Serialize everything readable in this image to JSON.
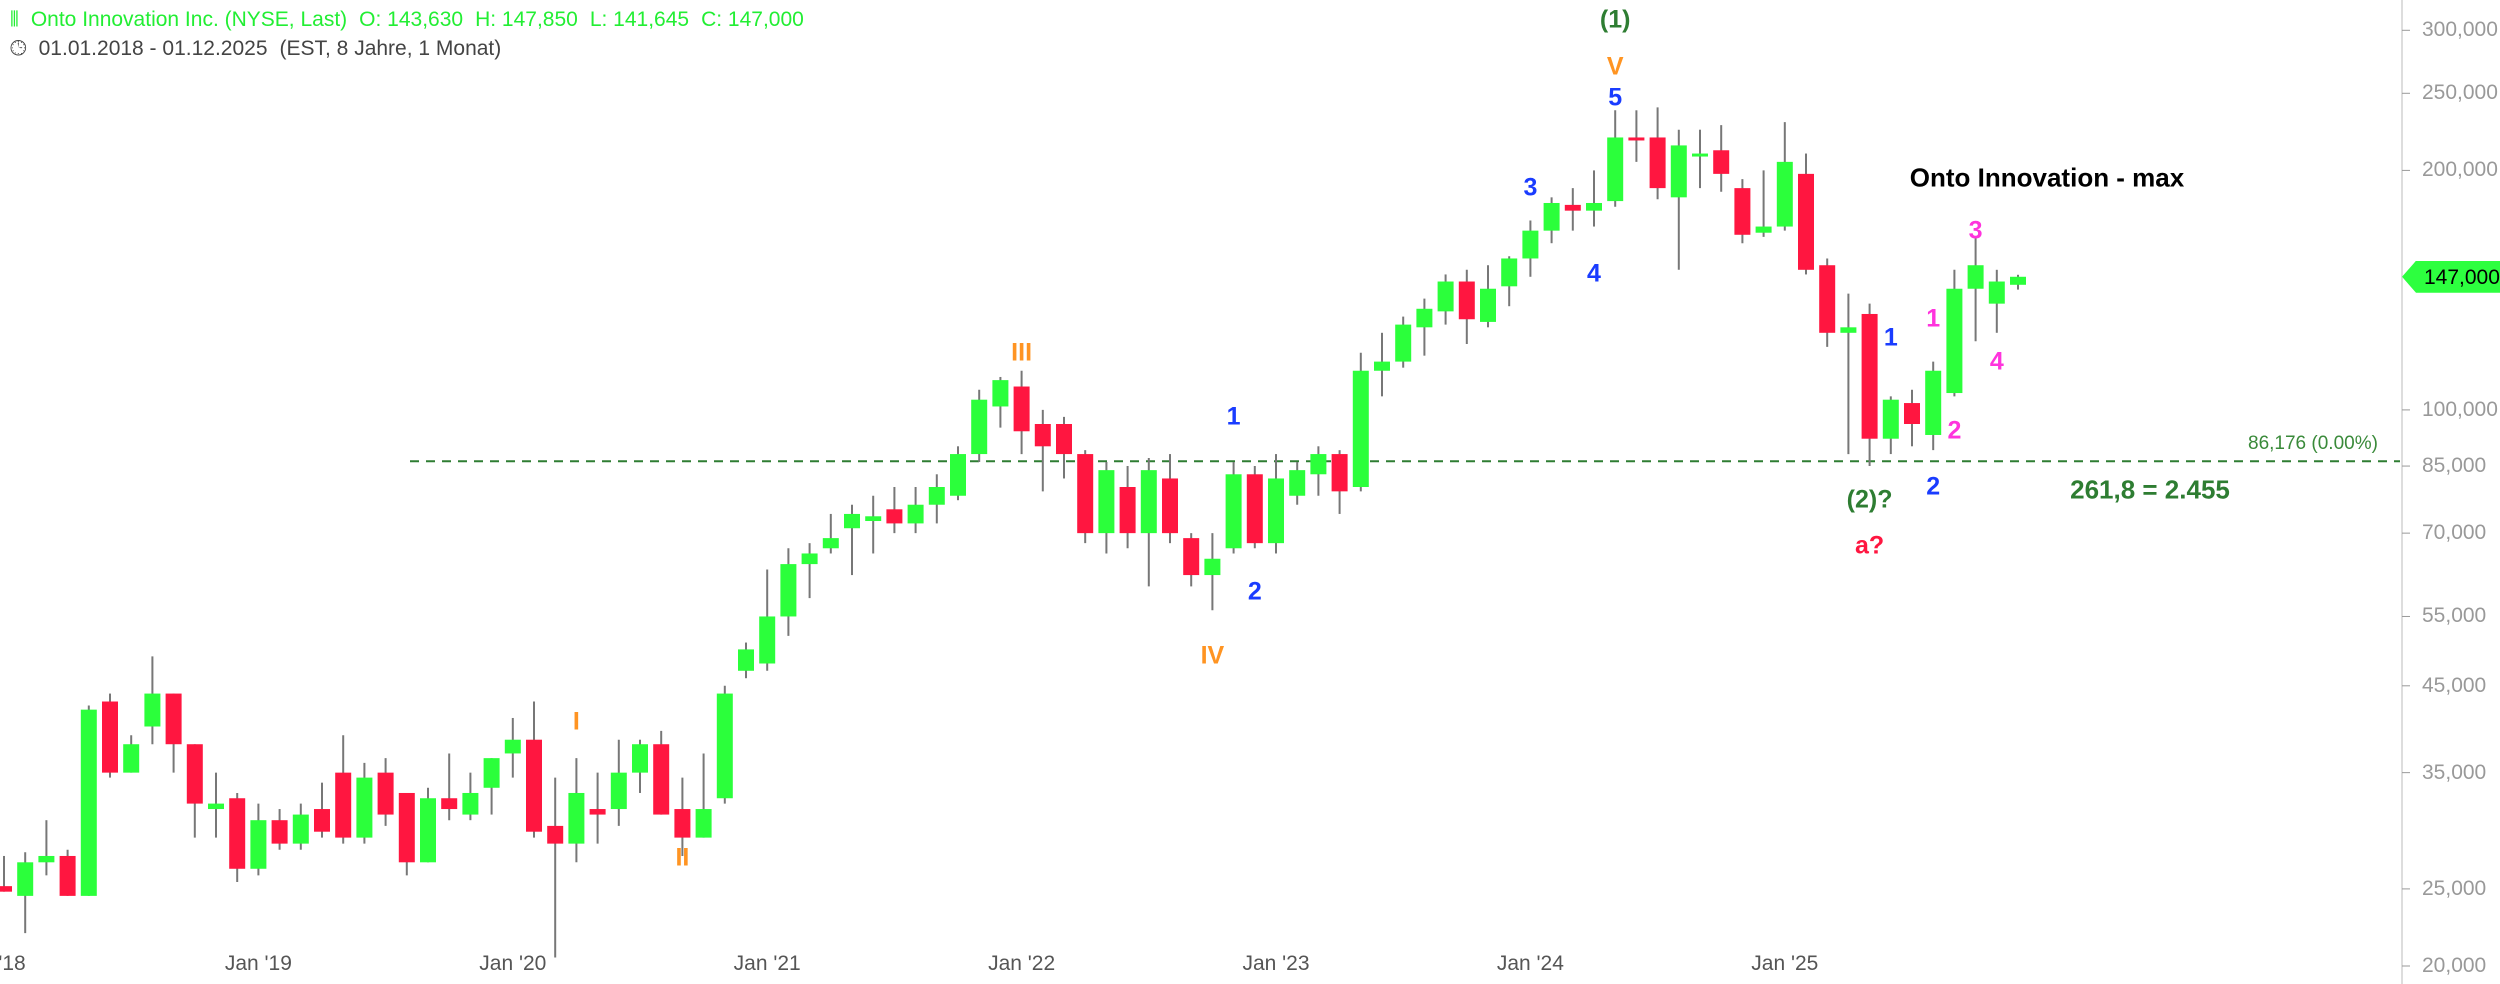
{
  "header": {
    "icon": "candlestick-icon",
    "instrument": "Onto Innovation Inc. (NYSE, Last)",
    "open": "O: 143,630",
    "high": "H: 147,850",
    "low": "L: 141,645",
    "close": "C: 147,000",
    "clock_icon": "clock-icon",
    "range": "01.01.2018 - 01.12.2025",
    "range_info": "(EST, 8 Jahre, 1 Monat)"
  },
  "colors": {
    "up": "#2bff3b",
    "down": "#ff1640",
    "wick": "#777777",
    "fib": "#2e7d32",
    "wave_major": "#ff9422",
    "wave_minor": "#1a3cff",
    "wave_sub": "#ff33dd",
    "wave_cycle": "#2e7d32",
    "correction": "#ff1640"
  },
  "chart_data": {
    "type": "candlestick",
    "title": "Onto Innovation - max",
    "yscale": "log",
    "ylim": [
      19500,
      320000
    ],
    "y_ticks": [
      300000,
      250000,
      200000,
      100000,
      85000,
      70000,
      55000,
      45000,
      35000,
      25000,
      20000
    ],
    "y_tick_labels": [
      "300,000",
      "250,000",
      "200,000",
      "100,000",
      "85,000",
      "70,000",
      "55,000",
      "45,000",
      "35,000",
      "25,000",
      "20,000"
    ],
    "x_tick_labels": [
      {
        "label": "'18",
        "index": 0
      },
      {
        "label": "Jan '19",
        "index": 12
      },
      {
        "label": "Jan '20",
        "index": 24
      },
      {
        "label": "Jan '21",
        "index": 36
      },
      {
        "label": "Jan '22",
        "index": 48
      },
      {
        "label": "Jan '23",
        "index": 60
      },
      {
        "label": "Jan '24",
        "index": 72
      },
      {
        "label": "Jan '25",
        "index": 84
      }
    ],
    "last_price_label": "147,000",
    "last_price": 147000,
    "fib_level": {
      "value": 86176,
      "label": "86,176 (0.00%)"
    },
    "fib_note": "261,8 = 2.455",
    "ohlc": [
      [
        25200,
        27500,
        24800,
        24800
      ],
      [
        24500,
        27800,
        22000,
        27000
      ],
      [
        27000,
        30500,
        26000,
        27500
      ],
      [
        27500,
        28000,
        24500,
        24500
      ],
      [
        24500,
        42500,
        24500,
        42000
      ],
      [
        43000,
        44000,
        34500,
        35000
      ],
      [
        35000,
        39000,
        35000,
        38000
      ],
      [
        40000,
        49000,
        38000,
        44000
      ],
      [
        44000,
        44000,
        35000,
        38000
      ],
      [
        38000,
        38000,
        29000,
        32000
      ],
      [
        31500,
        35000,
        29000,
        32000
      ],
      [
        32500,
        33000,
        25500,
        26500
      ],
      [
        26500,
        32000,
        26000,
        30500
      ],
      [
        30500,
        31500,
        28000,
        28500
      ],
      [
        28500,
        32000,
        28000,
        31000
      ],
      [
        31500,
        34000,
        29000,
        29500
      ],
      [
        35000,
        39000,
        28500,
        29000
      ],
      [
        29000,
        36000,
        28500,
        34500
      ],
      [
        35000,
        36500,
        30000,
        31000
      ],
      [
        33000,
        33000,
        26000,
        27000
      ],
      [
        27000,
        33500,
        27000,
        32500
      ],
      [
        32500,
        37000,
        30500,
        31500
      ],
      [
        31000,
        35000,
        30500,
        33000
      ],
      [
        33500,
        36500,
        31000,
        36500
      ],
      [
        37000,
        41000,
        34500,
        38500
      ],
      [
        38500,
        43000,
        29000,
        29500
      ],
      [
        30000,
        34500,
        20500,
        28500
      ],
      [
        28500,
        36500,
        27000,
        33000
      ],
      [
        31500,
        35000,
        28500,
        31000
      ],
      [
        31500,
        38500,
        30000,
        35000
      ],
      [
        35000,
        38500,
        33000,
        38000
      ],
      [
        38000,
        39500,
        31000,
        31000
      ],
      [
        31500,
        34500,
        27500,
        29000
      ],
      [
        29000,
        37000,
        29000,
        31500
      ],
      [
        32500,
        45000,
        32000,
        44000
      ],
      [
        47000,
        51000,
        46000,
        50000
      ],
      [
        48000,
        63000,
        47000,
        55000
      ],
      [
        55000,
        67000,
        52000,
        64000
      ],
      [
        64000,
        68000,
        58000,
        66000
      ],
      [
        67000,
        74000,
        66000,
        69000
      ],
      [
        71000,
        76000,
        62000,
        74000
      ],
      [
        72500,
        78000,
        66000,
        73500
      ],
      [
        75000,
        80000,
        70000,
        72000
      ],
      [
        72000,
        80000,
        70000,
        76000
      ],
      [
        76000,
        83000,
        72000,
        80000
      ],
      [
        78000,
        90000,
        77000,
        88000
      ],
      [
        88000,
        106000,
        86000,
        103000
      ],
      [
        101000,
        110000,
        95000,
        109000
      ],
      [
        107000,
        112000,
        88000,
        94000
      ],
      [
        96000,
        100000,
        79000,
        90000
      ],
      [
        96000,
        98000,
        82000,
        88000
      ],
      [
        88000,
        89000,
        68000,
        70000
      ],
      [
        70000,
        86000,
        66000,
        84000
      ],
      [
        80000,
        85000,
        67000,
        70000
      ],
      [
        70000,
        87000,
        60000,
        84000
      ],
      [
        82000,
        88000,
        68000,
        70000
      ],
      [
        69000,
        70000,
        60000,
        62000
      ],
      [
        62000,
        70000,
        56000,
        65000
      ],
      [
        67000,
        86000,
        66000,
        83000
      ],
      [
        83000,
        85000,
        67000,
        68000
      ],
      [
        68000,
        88000,
        66000,
        82000
      ],
      [
        78000,
        86000,
        76000,
        84000
      ],
      [
        83000,
        90000,
        78000,
        88000
      ],
      [
        88000,
        89000,
        74000,
        79000
      ],
      [
        80000,
        118000,
        79000,
        112000
      ],
      [
        112000,
        125000,
        104000,
        115000
      ],
      [
        115000,
        131000,
        113000,
        128000
      ],
      [
        127000,
        138000,
        117000,
        134000
      ],
      [
        133000,
        148000,
        128000,
        145000
      ],
      [
        145000,
        150000,
        121000,
        130000
      ],
      [
        129000,
        152000,
        127000,
        142000
      ],
      [
        143000,
        156000,
        135000,
        155000
      ],
      [
        155000,
        173000,
        147000,
        168000
      ],
      [
        168000,
        185000,
        162000,
        182000
      ],
      [
        181000,
        190000,
        168000,
        178000
      ],
      [
        178000,
        200000,
        170000,
        182000
      ],
      [
        183000,
        238000,
        180000,
        220000
      ],
      [
        220000,
        238000,
        205000,
        219000
      ],
      [
        220000,
        240000,
        184000,
        190000
      ],
      [
        185000,
        225000,
        150000,
        215000
      ],
      [
        209000,
        225000,
        190000,
        210000
      ],
      [
        212000,
        228000,
        188000,
        198000
      ],
      [
        190000,
        195000,
        162000,
        166000
      ],
      [
        167000,
        200000,
        165000,
        170000
      ],
      [
        170000,
        230000,
        168000,
        205000
      ],
      [
        198000,
        210000,
        148000,
        150000
      ],
      [
        152000,
        155000,
        120000,
        125000
      ],
      [
        125000,
        140000,
        88000,
        127000
      ],
      [
        132000,
        136000,
        85000,
        92000
      ],
      [
        92000,
        104000,
        88000,
        103000
      ],
      [
        102000,
        106000,
        90000,
        96000
      ],
      [
        93000,
        115000,
        89000,
        112000
      ],
      [
        105000,
        150000,
        104000,
        142000
      ],
      [
        142000,
        165000,
        122000,
        152000
      ],
      [
        136000,
        150000,
        125000,
        145000
      ],
      [
        143630,
        147850,
        141645,
        147000
      ]
    ]
  },
  "annotations": [
    {
      "text": "(1)",
      "kind": "wave_cycle",
      "index": 76,
      "price": 300000,
      "dy": -10
    },
    {
      "text": "V",
      "kind": "wave_major",
      "index": 76,
      "price": 270000,
      "dy": 0
    },
    {
      "text": "5",
      "kind": "wave_minor",
      "index": 76,
      "price": 250000,
      "dy": 5
    },
    {
      "text": "3",
      "kind": "wave_minor",
      "index": 72,
      "price": 190000,
      "dy": 0
    },
    {
      "text": "4",
      "kind": "wave_minor",
      "index": 75,
      "price": 148000,
      "dy": 0
    },
    {
      "text": "III",
      "kind": "wave_major",
      "index": 48,
      "price": 118000,
      "dy": 0
    },
    {
      "text": "1",
      "kind": "wave_minor",
      "index": 58,
      "price": 98000,
      "dy": 0
    },
    {
      "text": "2",
      "kind": "wave_minor",
      "index": 59,
      "price": 59000,
      "dy": 0
    },
    {
      "text": "IV",
      "kind": "wave_major",
      "index": 57,
      "price": 49000,
      "dy": 0
    },
    {
      "text": "I",
      "kind": "wave_major",
      "index": 27,
      "price": 40500,
      "dy": 0
    },
    {
      "text": "II",
      "kind": "wave_major",
      "index": 32,
      "price": 27300,
      "dy": 0
    },
    {
      "text": "3",
      "kind": "wave_sub",
      "index": 93,
      "price": 168000,
      "dy": 0
    },
    {
      "text": "1",
      "kind": "wave_sub",
      "index": 91,
      "price": 130000,
      "dy": 0
    },
    {
      "text": "4",
      "kind": "wave_sub",
      "index": 94,
      "price": 115000,
      "dy": 0
    },
    {
      "text": "2",
      "kind": "wave_sub",
      "index": 92,
      "price": 94000,
      "dy": 0
    },
    {
      "text": "1",
      "kind": "wave_minor",
      "index": 89,
      "price": 123000,
      "dy": 0
    },
    {
      "text": "2",
      "kind": "wave_minor",
      "index": 91,
      "price": 80000,
      "dy": 0
    },
    {
      "text": "(2)?",
      "kind": "wave_cycle",
      "index": 88,
      "price": 77000,
      "dy": 0
    },
    {
      "text": "a?",
      "kind": "correction",
      "index": 88,
      "price": 67500,
      "dy": 0
    }
  ]
}
